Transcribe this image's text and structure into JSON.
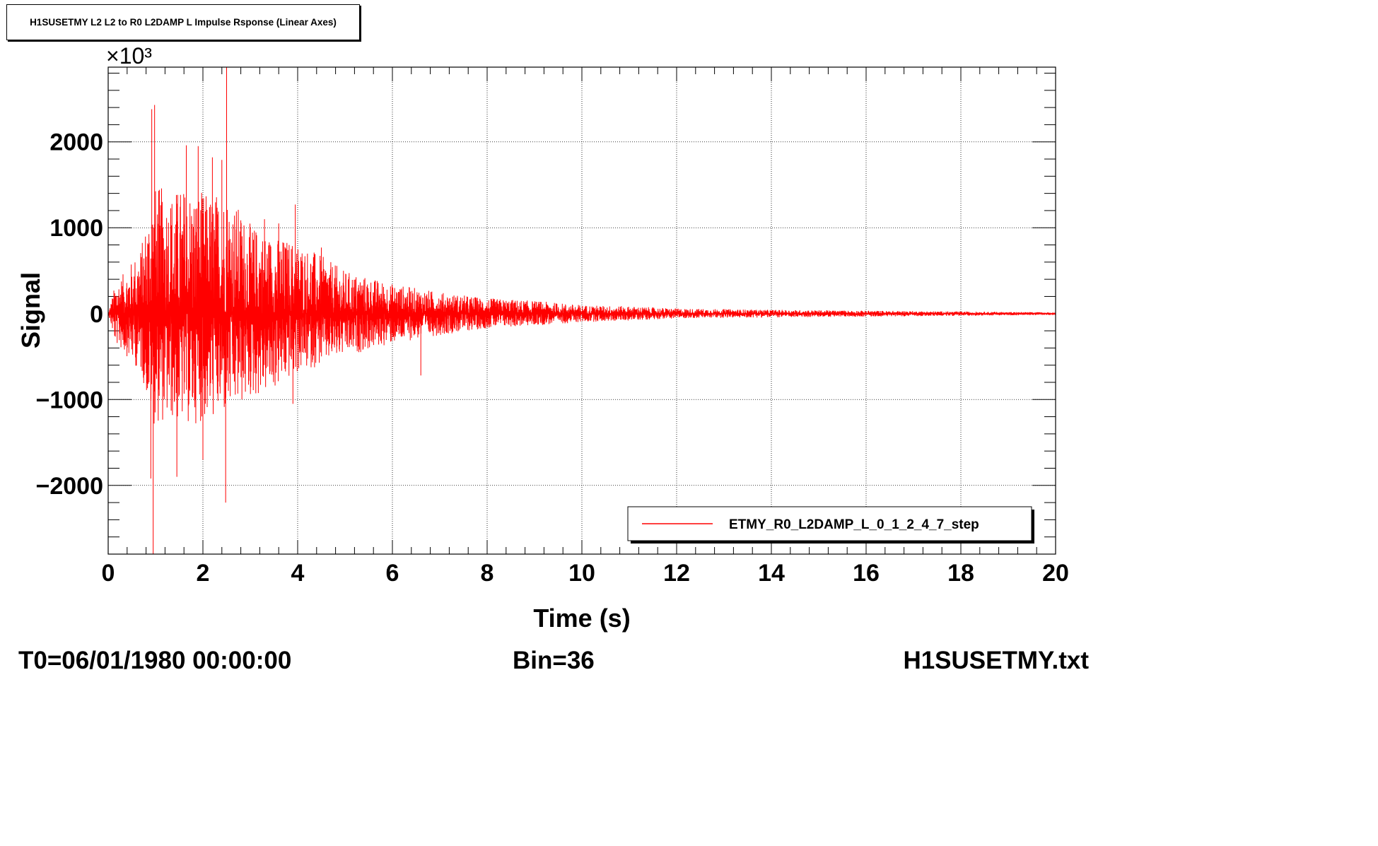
{
  "chart_data": {
    "type": "line",
    "title": "H1SUSETMY L2 L2 to R0 L2DAMP L Impulse Rsponse (Linear Axes)",
    "xlabel": "Time (s)",
    "ylabel": "Signal",
    "y_multiplier_label": "×10³",
    "xlim": [
      0,
      20
    ],
    "ylim": [
      -2800,
      2870
    ],
    "x_ticks": [
      0,
      2,
      4,
      6,
      8,
      10,
      12,
      14,
      16,
      18,
      20
    ],
    "x_tick_labels": [
      "0",
      "2",
      "4",
      "6",
      "8",
      "10",
      "12",
      "14",
      "16",
      "18",
      "20"
    ],
    "y_ticks": [
      -2000,
      -1000,
      0,
      1000,
      2000
    ],
    "y_tick_labels": [
      "−2000",
      "−1000",
      "0",
      "1000",
      "2000"
    ],
    "grid": true,
    "legend_position": "bottom-right",
    "series": [
      {
        "name": "ETMY_R0_L2DAMP_L_0_1_2_4_7_step",
        "color": "#ff0000",
        "envelope": {
          "x": [
            0,
            0.15,
            0.4,
            0.7,
            0.95,
            1.3,
            1.7,
            2.1,
            2.5,
            3.0,
            3.5,
            4.0,
            5.0,
            6.0,
            7.0,
            8.0,
            9.0,
            10.0,
            11.0,
            12.0,
            14.0,
            16.0,
            18.0,
            20.0
          ],
          "upper": [
            0,
            350,
            520,
            800,
            1500,
            1450,
            1500,
            1400,
            1450,
            1050,
            900,
            850,
            500,
            350,
            250,
            180,
            150,
            100,
            85,
            60,
            45,
            35,
            25,
            15
          ],
          "lower": [
            0,
            -350,
            -500,
            -700,
            -1300,
            -1250,
            -1300,
            -1250,
            -1200,
            -1000,
            -900,
            -700,
            -500,
            -350,
            -250,
            -170,
            -140,
            -100,
            -80,
            -55,
            -45,
            -35,
            -25,
            -15
          ]
        },
        "peaks": [
          {
            "x": 0.92,
            "y": 2380
          },
          {
            "x": 0.98,
            "y": 2430
          },
          {
            "x": 0.95,
            "y": -2800
          },
          {
            "x": 0.9,
            "y": -1920
          },
          {
            "x": 1.45,
            "y": -1900
          },
          {
            "x": 1.65,
            "y": 1960
          },
          {
            "x": 1.9,
            "y": 1950
          },
          {
            "x": 2.5,
            "y": 2870
          },
          {
            "x": 2.48,
            "y": -2200
          },
          {
            "x": 2.2,
            "y": 1820
          },
          {
            "x": 2.0,
            "y": -1700
          },
          {
            "x": 2.4,
            "y": 1790
          },
          {
            "x": 3.95,
            "y": 1270
          },
          {
            "x": 3.3,
            "y": 1100
          },
          {
            "x": 3.6,
            "y": 1050
          },
          {
            "x": 6.6,
            "y": -720
          },
          {
            "x": 4.5,
            "y": 770
          },
          {
            "x": 3.9,
            "y": -1050
          }
        ]
      }
    ]
  },
  "footer": {
    "t0": "T0=06/01/1980 00:00:00",
    "bin": "Bin=36",
    "file": "H1SUSETMY.txt"
  }
}
